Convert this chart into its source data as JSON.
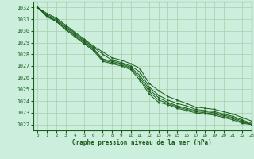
{
  "bg_color": "#cceedd",
  "grid_color": "#aaccaa",
  "line_color": "#1a5c1a",
  "xlabel": "Graphe pression niveau de la mer (hPa)",
  "xlim": [
    -0.5,
    23
  ],
  "ylim": [
    1021.5,
    1032.5
  ],
  "yticks": [
    1022,
    1023,
    1024,
    1025,
    1026,
    1027,
    1028,
    1029,
    1030,
    1031,
    1032
  ],
  "xticks": [
    0,
    1,
    2,
    3,
    4,
    5,
    6,
    7,
    8,
    9,
    10,
    11,
    12,
    13,
    14,
    15,
    16,
    17,
    18,
    19,
    20,
    21,
    22,
    23
  ],
  "series": [
    [
      1032.0,
      1031.5,
      1031.1,
      1030.5,
      1029.9,
      1029.3,
      1028.7,
      1028.2,
      1027.7,
      1027.5,
      1027.2,
      1026.8,
      1025.5,
      1024.9,
      1024.4,
      1024.1,
      1023.8,
      1023.5,
      1023.4,
      1023.3,
      1023.1,
      1022.9,
      1022.6,
      1022.3
    ],
    [
      1032.0,
      1031.4,
      1031.0,
      1030.4,
      1029.8,
      1029.2,
      1028.6,
      1028.0,
      1027.5,
      1027.3,
      1027.0,
      1026.5,
      1025.2,
      1024.5,
      1024.1,
      1023.8,
      1023.6,
      1023.3,
      1023.2,
      1023.1,
      1022.9,
      1022.7,
      1022.4,
      1022.1
    ],
    [
      1032.0,
      1031.3,
      1030.9,
      1030.3,
      1029.7,
      1029.1,
      1028.5,
      1027.6,
      1027.4,
      1027.2,
      1026.9,
      1026.2,
      1025.0,
      1024.3,
      1023.9,
      1023.6,
      1023.4,
      1023.2,
      1023.1,
      1023.0,
      1022.8,
      1022.6,
      1022.3,
      1022.0
    ],
    [
      1032.0,
      1031.3,
      1030.8,
      1030.2,
      1029.6,
      1029.0,
      1028.4,
      1027.5,
      1027.3,
      1027.1,
      1026.8,
      1026.0,
      1024.8,
      1024.1,
      1023.8,
      1023.5,
      1023.3,
      1023.1,
      1023.0,
      1022.9,
      1022.7,
      1022.5,
      1022.2,
      1022.0
    ],
    [
      1032.0,
      1031.2,
      1030.8,
      1030.1,
      1029.5,
      1028.9,
      1028.3,
      1027.4,
      1027.2,
      1027.0,
      1026.7,
      1025.8,
      1024.6,
      1023.9,
      1023.7,
      1023.4,
      1023.2,
      1023.0,
      1022.9,
      1022.8,
      1022.6,
      1022.4,
      1022.1,
      1022.0
    ]
  ]
}
